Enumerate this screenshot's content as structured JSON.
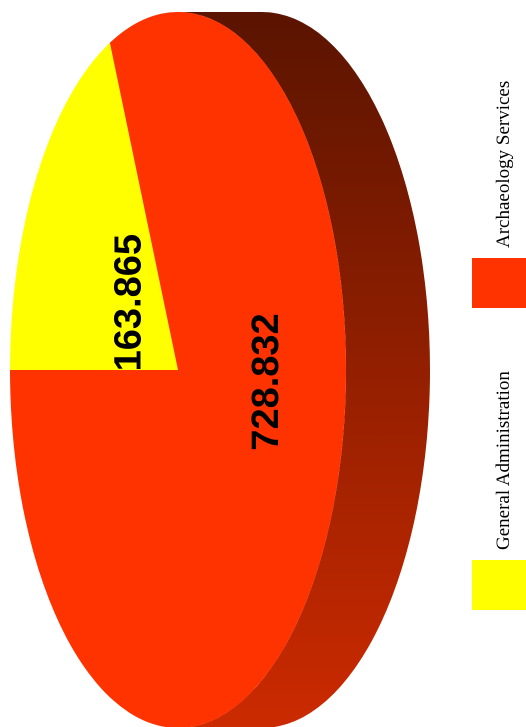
{
  "chart_data": {
    "type": "pie",
    "style": "3d",
    "orientation": "rotated-90",
    "legend_position": "right",
    "series": [
      {
        "name": "General Administration",
        "value": 163.865,
        "label": "163.865",
        "color": "#ffff00"
      },
      {
        "name": "Archaeology Services",
        "value": 728.832,
        "label": "728.832",
        "color": "#ff3300"
      }
    ],
    "side_color_dark": "#5a1400",
    "side_color_light": "#cc2a00"
  }
}
